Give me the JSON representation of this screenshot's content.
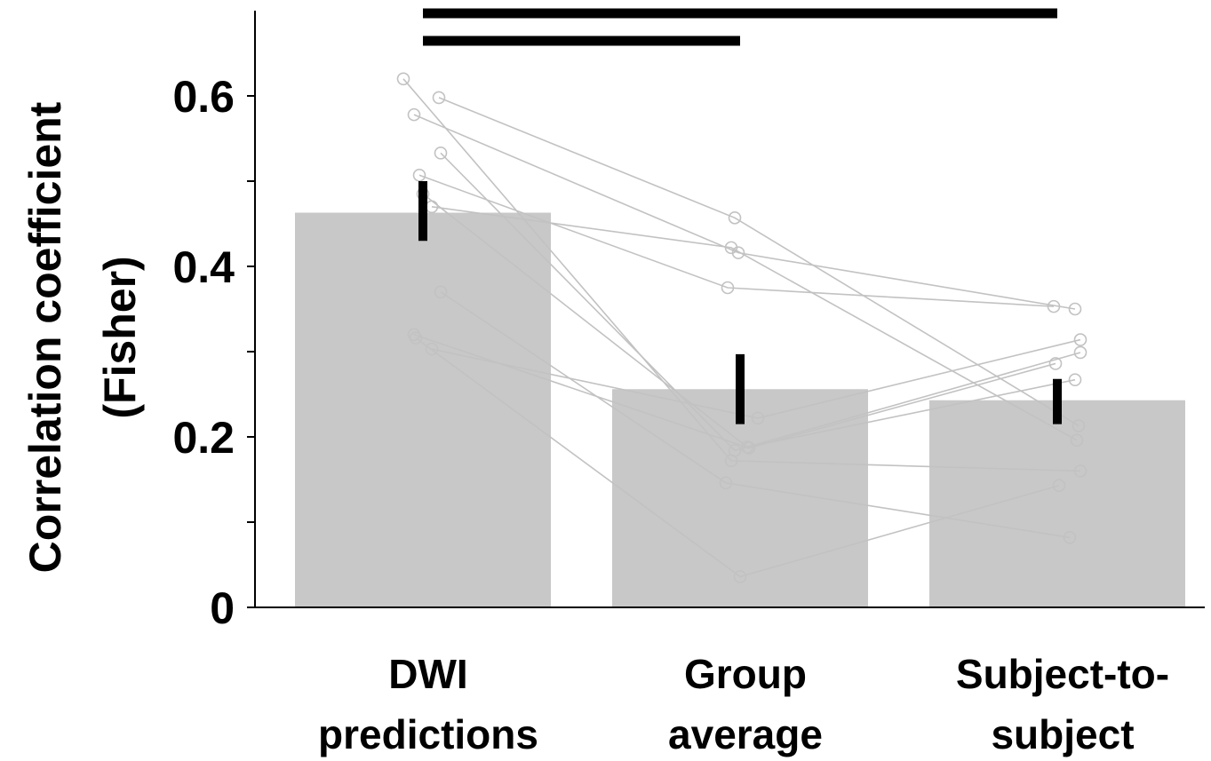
{
  "chart_data": {
    "type": "bar",
    "title": "",
    "ylabel": [
      "Correlation coefficient",
      "(Fisher)"
    ],
    "xlabel": "",
    "ylim": [
      0,
      0.7
    ],
    "yticks": [
      0,
      0.1,
      0.2,
      0.3,
      0.4,
      0.5,
      0.6
    ],
    "ytick_labels": [
      {
        "value": 0,
        "label": "0"
      },
      {
        "value": 0.2,
        "label": "0.2"
      },
      {
        "value": 0.4,
        "label": "0.4"
      },
      {
        "value": 0.6,
        "label": "0.6"
      }
    ],
    "categories": [
      [
        "DWI",
        "predictions"
      ],
      [
        "Group",
        "average"
      ],
      [
        "Subject-to-",
        "subject"
      ]
    ],
    "values": [
      0.463,
      0.256,
      0.243
    ],
    "error_bars": [
      [
        0.43,
        0.5
      ],
      [
        0.215,
        0.297
      ],
      [
        0.215,
        0.268
      ]
    ],
    "significance_bars": [
      {
        "from": 0,
        "to": 2
      },
      {
        "from": 0,
        "to": 1
      }
    ],
    "subjects": [
      [
        0.62,
        0.172,
        0.16
      ],
      [
        0.598,
        0.457,
        0.213
      ],
      [
        0.578,
        0.416,
        0.35
      ],
      [
        0.533,
        0.184,
        0.299
      ],
      [
        0.507,
        0.375,
        0.353
      ],
      [
        0.47,
        0.422,
        0.196
      ],
      [
        0.37,
        0.146,
        0.082
      ],
      [
        0.32,
        0.187,
        0.286
      ],
      [
        0.316,
        0.036,
        0.143
      ],
      [
        0.303,
        0.222,
        0.314
      ],
      [
        0.485,
        0.188,
        0.267
      ]
    ],
    "grid": false,
    "colors": {
      "bar": "#c8c8c8",
      "subject_line": "#c2c2c2",
      "error": "#000000",
      "axis": "#000000"
    }
  }
}
